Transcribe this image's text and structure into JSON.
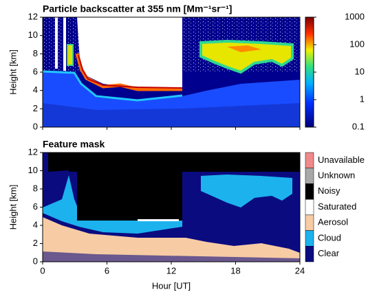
{
  "chart_data": [
    {
      "type": "heatmap",
      "title": "Particle backscatter at 355 nm [Mm⁻¹sr⁻¹]",
      "ylabel": "Height [km]",
      "xlim": [
        0,
        24
      ],
      "xticks": [
        0,
        6,
        12,
        18,
        24
      ],
      "ylim": [
        0,
        12
      ],
      "yticks": [
        0,
        2,
        4,
        6,
        8,
        10,
        12
      ],
      "colorbar": {
        "scale": "log",
        "lim": [
          0.1,
          1000
        ],
        "ticks": [
          0.1,
          1,
          10,
          100,
          1000
        ]
      }
    },
    {
      "type": "classmask",
      "title": "Feature mask",
      "xlabel": "Hour [UT]",
      "ylabel": "Height [km]",
      "xlim": [
        0,
        24
      ],
      "xticks": [
        0,
        6,
        12,
        18,
        24
      ],
      "ylim": [
        0,
        12
      ],
      "yticks": [
        0,
        2,
        4,
        6,
        8,
        10,
        12
      ],
      "classes": [
        {
          "name": "Unavailable",
          "color": "#f08a8a"
        },
        {
          "name": "Unknown",
          "color": "#a8a8a8"
        },
        {
          "name": "Noisy",
          "color": "#000000"
        },
        {
          "name": "Saturated",
          "color": "#ffffff"
        },
        {
          "name": "Aerosol",
          "color": "#f7cba4"
        },
        {
          "name": "Cloud",
          "color": "#1cb2ee"
        },
        {
          "name": "Clear",
          "color": "#0b0b80"
        }
      ]
    }
  ]
}
